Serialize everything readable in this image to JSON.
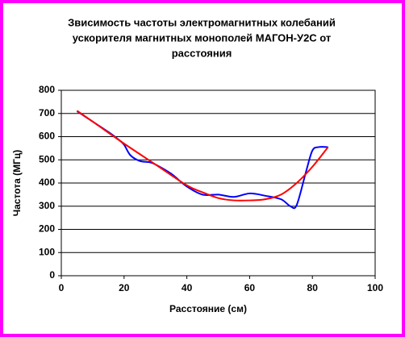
{
  "chart_data": {
    "type": "line",
    "title": [
      "Звисимость частоты электромагнитных колебаний",
      "ускорителя магнитных монополей МАГОН-У2С от",
      "расстояния"
    ],
    "x_label": "Расстояние (см)",
    "y_label": "Частота (МГц)",
    "xlim": [
      0,
      100
    ],
    "xticks": [
      0,
      20,
      40,
      60,
      80,
      100
    ],
    "ylim": [
      0,
      800
    ],
    "yticks": [
      0,
      100,
      200,
      300,
      400,
      500,
      600,
      700,
      800
    ],
    "grid": true,
    "series": [
      {
        "color": "#0000ff",
        "x": [
          5,
          10,
          15,
          18,
          20,
          22,
          25,
          28,
          30,
          35,
          40,
          45,
          50,
          55,
          60,
          65,
          70,
          73,
          75,
          78,
          80,
          82,
          85
        ],
        "values": [
          710,
          665,
          620,
          590,
          565,
          520,
          495,
          490,
          480,
          440,
          385,
          350,
          350,
          340,
          355,
          345,
          330,
          300,
          305,
          450,
          540,
          555,
          555
        ]
      },
      {
        "color": "#ff0000",
        "x": [
          5,
          10,
          20,
          30,
          40,
          45,
          50,
          55,
          60,
          65,
          70,
          75,
          80,
          85
        ],
        "values": [
          712,
          665,
          570,
          480,
          390,
          360,
          335,
          325,
          325,
          330,
          350,
          400,
          470,
          555
        ]
      }
    ]
  }
}
